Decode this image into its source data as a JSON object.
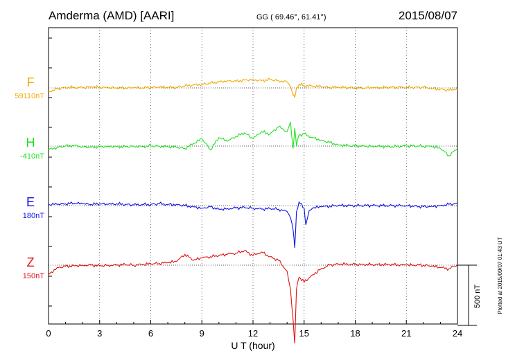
{
  "header": {
    "station": "Amderma (AMD)  [AARI]",
    "coords": "GG ( 69.46°,  61.41°)",
    "date": "2015/08/07"
  },
  "chart_data": {
    "type": "line",
    "xlabel": "U T (hour)",
    "xlim": [
      0,
      24
    ],
    "xticks": [
      0,
      3,
      6,
      9,
      12,
      15,
      18,
      21,
      24
    ],
    "scale_bar": {
      "value": 500,
      "label": "500 nT"
    },
    "plotted_note": "Plotted at 2015/09/07 01:43 UT",
    "series": [
      {
        "name": "F",
        "baseline_label": "59110nT",
        "baseline": 59110,
        "color": "#f2a900",
        "x": [
          0,
          0.5,
          1,
          1.5,
          2,
          2.5,
          3,
          3.5,
          4,
          4.5,
          5,
          5.5,
          6,
          6.5,
          7,
          7.5,
          8,
          8.5,
          9,
          9.5,
          10,
          10.5,
          11,
          11.5,
          12,
          12.5,
          13,
          13.5,
          14,
          14.2,
          14.35,
          14.45,
          14.55,
          14.7,
          15,
          15.5,
          16,
          16.5,
          17,
          18,
          19,
          20,
          21,
          22,
          22.5,
          23,
          23.5,
          24
        ],
        "values": [
          -30,
          -10,
          5,
          5,
          0,
          10,
          5,
          0,
          0,
          0,
          0,
          0,
          5,
          5,
          5,
          5,
          15,
          25,
          30,
          40,
          50,
          60,
          55,
          65,
          70,
          60,
          70,
          60,
          50,
          10,
          -60,
          -80,
          0,
          30,
          20,
          15,
          10,
          5,
          5,
          0,
          0,
          5,
          5,
          5,
          -5,
          -10,
          -20,
          -5
        ]
      },
      {
        "name": "H",
        "baseline_label": "-410nT",
        "baseline": -410,
        "color": "#22e022",
        "x": [
          0,
          0.5,
          1,
          1.5,
          2,
          2.5,
          3,
          3.5,
          4,
          4.5,
          5,
          5.5,
          6,
          6.5,
          7,
          7.5,
          8,
          8.5,
          9,
          9.5,
          10,
          10.5,
          11,
          11.5,
          12,
          12.5,
          13,
          13.5,
          14,
          14.2,
          14.35,
          14.45,
          14.55,
          14.7,
          15,
          15.5,
          16,
          16.5,
          17,
          18,
          19,
          20,
          21,
          22,
          22.5,
          23,
          23.5,
          24
        ],
        "values": [
          -30,
          -10,
          0,
          5,
          -5,
          -10,
          -5,
          0,
          -5,
          -5,
          0,
          -5,
          0,
          0,
          -5,
          -10,
          -20,
          20,
          60,
          -30,
          70,
          40,
          80,
          110,
          60,
          120,
          100,
          160,
          120,
          200,
          -20,
          150,
          0,
          90,
          100,
          70,
          50,
          30,
          10,
          0,
          0,
          -5,
          0,
          0,
          -5,
          -20,
          -80,
          -20
        ]
      },
      {
        "name": "E",
        "baseline_label": "180nT",
        "baseline": 180,
        "color": "#1010e0",
        "x": [
          0,
          0.5,
          1,
          1.5,
          2,
          2.5,
          3,
          3.5,
          4,
          4.5,
          5,
          5.5,
          6,
          6.5,
          7,
          7.5,
          8,
          8.5,
          9,
          9.5,
          10,
          10.5,
          11,
          11.5,
          12,
          12.5,
          13,
          13.5,
          14,
          14.2,
          14.35,
          14.45,
          14.55,
          14.7,
          15,
          15.1,
          15.3,
          15.5,
          16,
          17,
          18,
          19,
          20,
          21,
          22,
          22.5,
          23,
          23.5,
          24
        ],
        "values": [
          10,
          10,
          15,
          20,
          15,
          10,
          15,
          10,
          15,
          10,
          5,
          10,
          10,
          15,
          10,
          10,
          0,
          -10,
          -20,
          -10,
          -30,
          -25,
          -20,
          -15,
          -20,
          -30,
          -25,
          -30,
          -50,
          -100,
          -200,
          -350,
          -50,
          30,
          -20,
          -160,
          -40,
          -20,
          -10,
          0,
          0,
          0,
          0,
          0,
          -10,
          -5,
          0,
          10,
          20
        ]
      },
      {
        "name": "Z",
        "baseline_label": "150nT",
        "baseline": 150,
        "color": "#e01010",
        "x": [
          0,
          0.5,
          1,
          1.5,
          2,
          2.5,
          3,
          3.5,
          4,
          4.5,
          5,
          5.5,
          6,
          6.5,
          7,
          7.5,
          8,
          8.5,
          9,
          9.5,
          10,
          10.5,
          11,
          11.5,
          12,
          12.5,
          13,
          13.5,
          14,
          14.2,
          14.35,
          14.45,
          14.55,
          14.7,
          15,
          15.5,
          16,
          16.5,
          17,
          18,
          19,
          20,
          21,
          22,
          22.5,
          23,
          23.5,
          24
        ],
        "values": [
          -80,
          -20,
          -10,
          -5,
          0,
          0,
          -5,
          0,
          0,
          5,
          0,
          5,
          10,
          15,
          20,
          30,
          90,
          40,
          60,
          70,
          80,
          90,
          100,
          120,
          80,
          110,
          70,
          40,
          -50,
          -200,
          -450,
          -650,
          -200,
          -100,
          -140,
          -80,
          -30,
          0,
          10,
          5,
          5,
          5,
          0,
          0,
          -10,
          -20,
          -30,
          0
        ]
      }
    ]
  }
}
